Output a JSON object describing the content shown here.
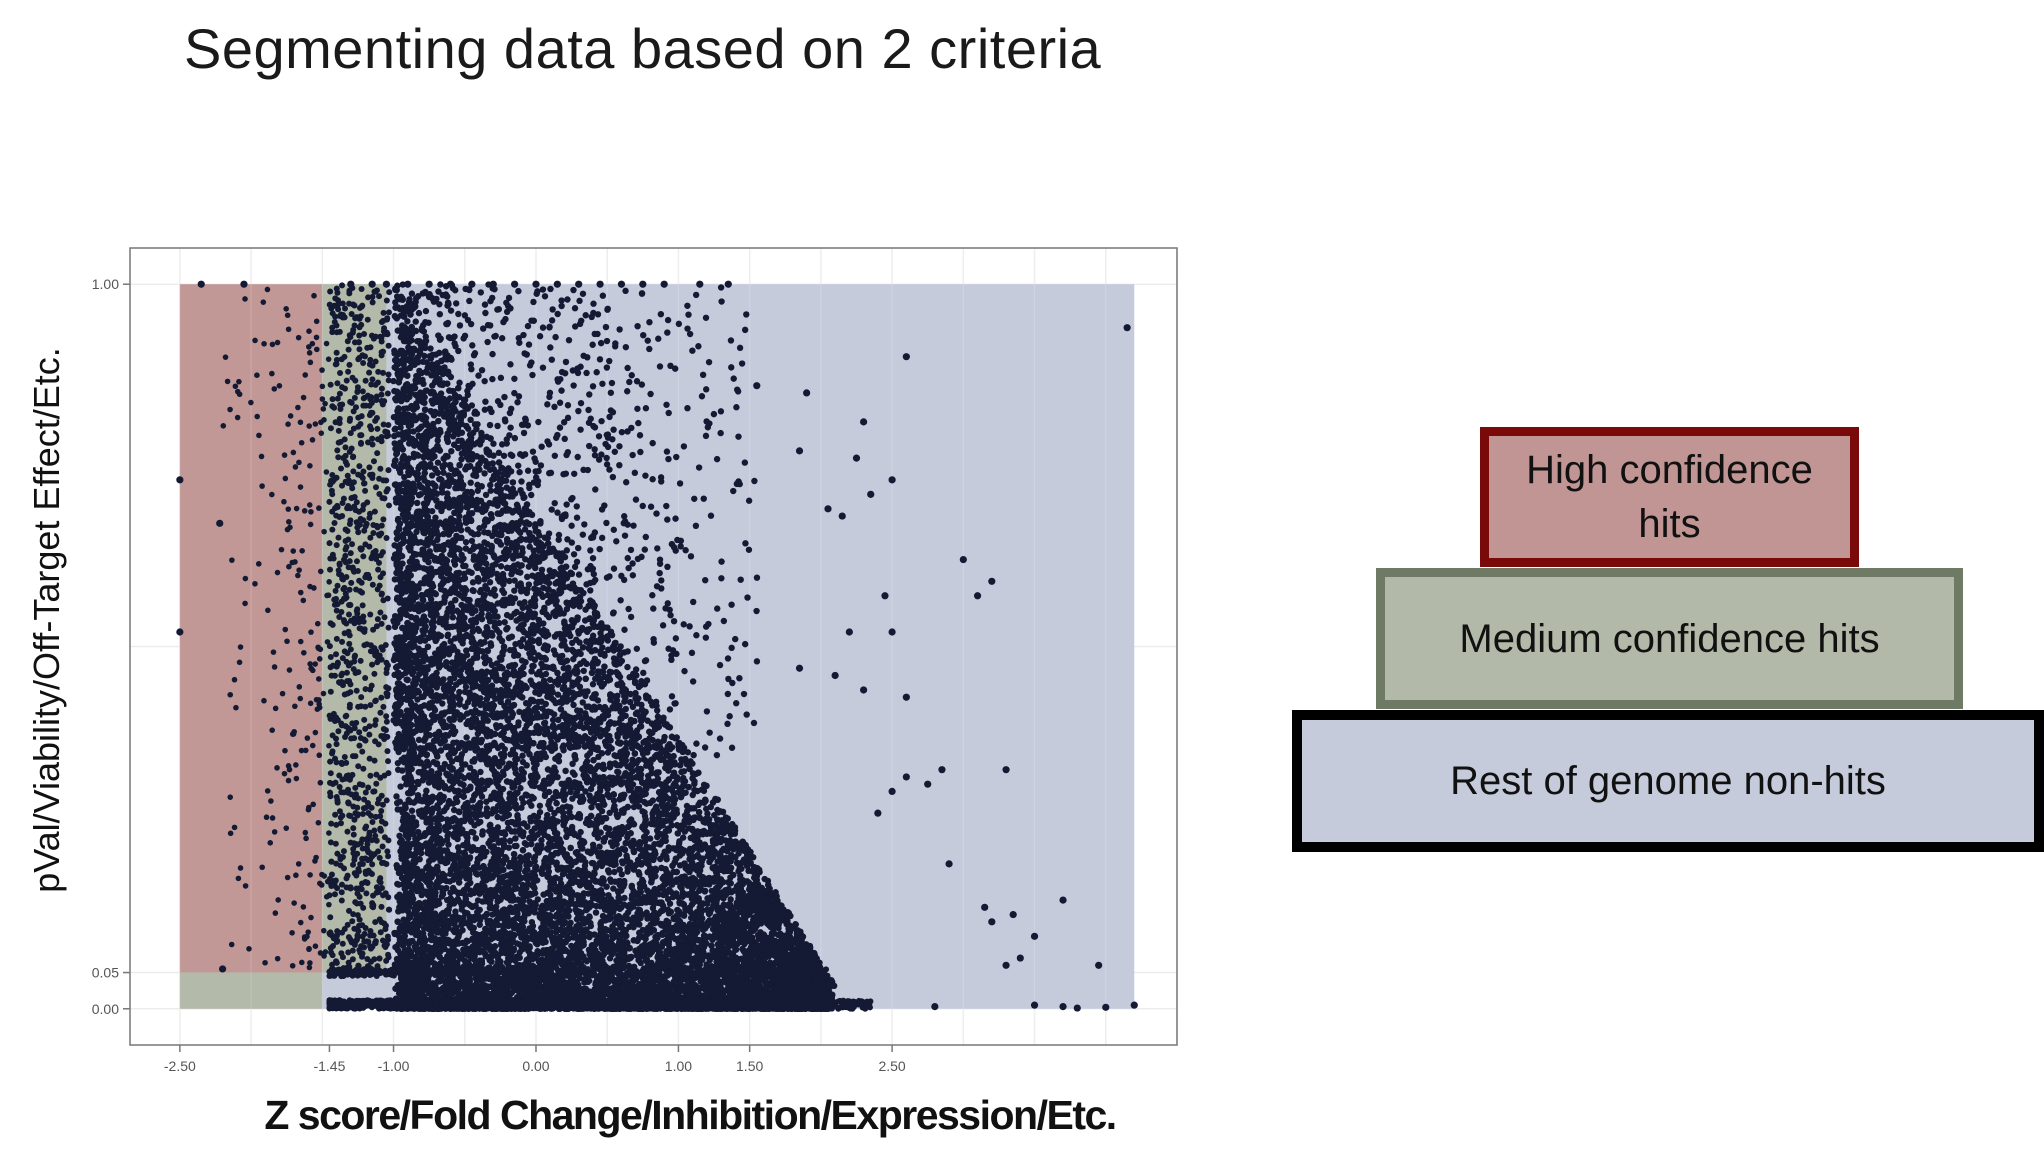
{
  "chart_data": {
    "type": "scatter",
    "title": "Segmenting data based on 2 criteria",
    "xlabel": "Z score/Fold Change/Inhibition/Expression/Etc.",
    "ylabel": "pVal/Viability/Off-Target Effect/Etc.",
    "xlim": [
      -2.85,
      4.5
    ],
    "ylim": [
      -0.05,
      1.05
    ],
    "x_ticks": [
      {
        "value": -2.5,
        "label": "-2.50"
      },
      {
        "value": -1.45,
        "label": "-1.45"
      },
      {
        "value": -1.0,
        "label": "-1.00"
      },
      {
        "value": 0.0,
        "label": "0.00"
      },
      {
        "value": 1.0,
        "label": "1.00"
      },
      {
        "value": 1.5,
        "label": "1.50"
      },
      {
        "value": 2.5,
        "label": "2.50"
      }
    ],
    "x_gridlines": [
      -2.5,
      -2.0,
      -1.5,
      -1.0,
      -0.5,
      0.0,
      0.5,
      1.0,
      1.5,
      2.0,
      2.5,
      3.0,
      3.5,
      4.0,
      4.5
    ],
    "y_ticks": [
      {
        "value": 0.0,
        "label": "0.00"
      },
      {
        "value": 0.05,
        "label": "0.05"
      },
      {
        "value": 1.0,
        "label": "1.00"
      }
    ],
    "y_gridlines": [
      0.0,
      0.05,
      0.5,
      1.0
    ],
    "grid": true,
    "regions": [
      {
        "name": "rest",
        "x": [
          -2.5,
          4.2
        ],
        "y": [
          0.0,
          1.0
        ],
        "color": "#c6cbdc"
      },
      {
        "name": "high",
        "x": [
          -2.5,
          -1.5
        ],
        "y": [
          0.05,
          1.0
        ],
        "color": "#c19896"
      },
      {
        "name": "medium-upper",
        "x": [
          -1.5,
          -1.05
        ],
        "y": [
          0.05,
          1.0
        ],
        "color": "#b3baa9"
      },
      {
        "name": "medium-lower",
        "x": [
          -2.5,
          -1.5
        ],
        "y": [
          0.0,
          0.05
        ],
        "color": "#b3baa9"
      }
    ],
    "point_color": "#141a33",
    "series": [
      {
        "values": [
          [
            -2.5,
            0.73
          ],
          [
            -2.5,
            0.52
          ],
          [
            -2.35,
            1.0
          ],
          [
            -2.22,
            0.67
          ],
          [
            -2.2,
            0.055
          ],
          [
            -2.05,
            1.0
          ],
          [
            -1.3,
            1.0
          ],
          [
            -1.15,
            1.0
          ],
          [
            -1.05,
            1.0
          ],
          [
            -0.9,
            1.0
          ],
          [
            -0.75,
            1.0
          ],
          [
            -0.6,
            1.0
          ],
          [
            -0.45,
            1.0
          ],
          [
            -0.3,
            1.0
          ],
          [
            -0.15,
            1.0
          ],
          [
            0.0,
            1.0
          ],
          [
            0.15,
            1.0
          ],
          [
            0.3,
            1.0
          ],
          [
            0.45,
            1.0
          ],
          [
            0.6,
            1.0
          ],
          [
            0.75,
            1.0
          ],
          [
            0.9,
            1.0
          ],
          [
            1.15,
            1.0
          ],
          [
            1.35,
            1.0
          ],
          [
            4.15,
            0.94
          ],
          [
            2.6,
            0.9
          ],
          [
            1.9,
            0.85
          ],
          [
            1.55,
            0.86
          ],
          [
            2.3,
            0.81
          ],
          [
            2.25,
            0.76
          ],
          [
            1.85,
            0.77
          ],
          [
            2.35,
            0.71
          ],
          [
            2.05,
            0.69
          ],
          [
            2.15,
            0.68
          ],
          [
            2.5,
            0.73
          ],
          [
            3.0,
            0.62
          ],
          [
            3.2,
            0.59
          ],
          [
            3.1,
            0.57
          ],
          [
            2.45,
            0.57
          ],
          [
            2.2,
            0.52
          ],
          [
            2.5,
            0.52
          ],
          [
            1.85,
            0.47
          ],
          [
            2.1,
            0.46
          ],
          [
            2.3,
            0.44
          ],
          [
            2.6,
            0.43
          ],
          [
            2.85,
            0.33
          ],
          [
            3.3,
            0.33
          ],
          [
            2.5,
            0.3
          ],
          [
            2.6,
            0.32
          ],
          [
            2.75,
            0.31
          ],
          [
            2.4,
            0.27
          ],
          [
            2.9,
            0.2
          ],
          [
            3.15,
            0.14
          ],
          [
            3.35,
            0.13
          ],
          [
            3.7,
            0.15
          ],
          [
            3.2,
            0.12
          ],
          [
            3.5,
            0.1
          ],
          [
            3.4,
            0.07
          ],
          [
            3.3,
            0.06
          ],
          [
            3.95,
            0.06
          ],
          [
            3.5,
            0.005
          ],
          [
            3.7,
            0.003
          ],
          [
            3.8,
            0.001
          ],
          [
            4.0,
            0.002
          ],
          [
            4.2,
            0.005
          ],
          [
            2.8,
            0.003
          ]
        ]
      }
    ]
  },
  "legend": {
    "high": "High confidence hits",
    "medium": "Medium confidence hits",
    "rest": "Rest of genome non-hits"
  }
}
